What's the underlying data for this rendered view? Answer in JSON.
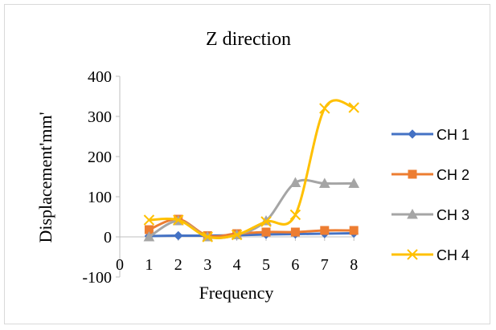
{
  "chart_data": {
    "type": "line",
    "title": "Z direction",
    "xlabel": "Frequency",
    "ylabel": "Displacement'mm'",
    "x": [
      1,
      2,
      3,
      4,
      5,
      6,
      7,
      8
    ],
    "x_ticks": [
      "0",
      "1",
      "2",
      "3",
      "4",
      "5",
      "6",
      "7",
      "8"
    ],
    "xlim": [
      0,
      8
    ],
    "y_ticks": [
      "-100",
      "0",
      "100",
      "200",
      "300",
      "400"
    ],
    "ylim": [
      -100,
      400
    ],
    "grid": false,
    "smooth": true,
    "legend_position": "right",
    "series": [
      {
        "name": "CH 1",
        "color": "#4472c4",
        "marker": "diamond",
        "values": [
          2,
          3,
          3,
          4,
          6,
          7,
          8,
          9
        ]
      },
      {
        "name": "CH 2",
        "color": "#ed7d31",
        "marker": "square",
        "values": [
          18,
          44,
          3,
          8,
          12,
          12,
          16,
          16
        ]
      },
      {
        "name": "CH 3",
        "color": "#a5a5a5",
        "marker": "triangle",
        "values": [
          0,
          40,
          0,
          5,
          40,
          135,
          133,
          133
        ]
      },
      {
        "name": "CH 4",
        "color": "#ffc000",
        "marker": "x",
        "values": [
          42,
          42,
          0,
          5,
          38,
          55,
          320,
          322
        ]
      }
    ]
  }
}
